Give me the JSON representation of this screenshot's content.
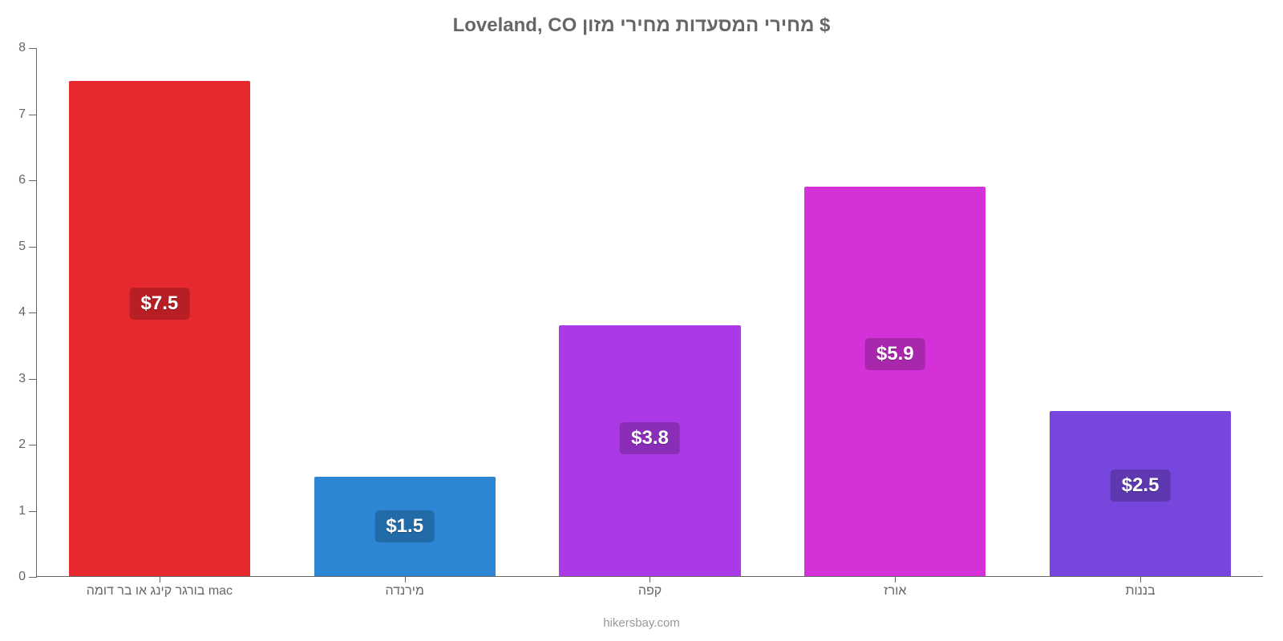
{
  "chart": {
    "type": "bar",
    "title": "Loveland, CO מחירי המסעדות מחירי מזון $",
    "title_fontsize": 24,
    "title_color": "#666666",
    "background_color": "#ffffff",
    "axis_color": "#666666",
    "tick_label_color": "#666666",
    "tick_label_fontsize": 16,
    "ylim_min": 0,
    "ylim_max": 8,
    "ytick_step": 1,
    "y_ticks": [
      0,
      1,
      2,
      3,
      4,
      5,
      6,
      7,
      8
    ],
    "bar_width_ratio": 0.74,
    "value_label_fontsize": 24,
    "bars": [
      {
        "category": "בורגר קינג או בר דומה mac",
        "value": 7.5,
        "display": "$7.5",
        "bar_color": "#e6282f",
        "label_bg": "#b81f25",
        "label_y_frac": 0.55
      },
      {
        "category": "מירנדה",
        "value": 1.5,
        "display": "$1.5",
        "bar_color": "#2c86d3",
        "label_bg": "#226ba9",
        "label_y_frac": 0.5
      },
      {
        "category": "קפה",
        "value": 3.8,
        "display": "$3.8",
        "bar_color": "#ac39e6",
        "label_bg": "#8a2eb8",
        "label_y_frac": 0.55
      },
      {
        "category": "אורז",
        "value": 5.9,
        "display": "$5.9",
        "bar_color": "#d432d8",
        "label_bg": "#a927ad",
        "label_y_frac": 0.57
      },
      {
        "category": "בננות",
        "value": 2.5,
        "display": "$2.5",
        "bar_color": "#7746dc",
        "label_bg": "#5e38b0",
        "label_y_frac": 0.55
      }
    ],
    "footer": "hikersbay.com",
    "footer_color": "#999999",
    "footer_fontsize": 15
  }
}
